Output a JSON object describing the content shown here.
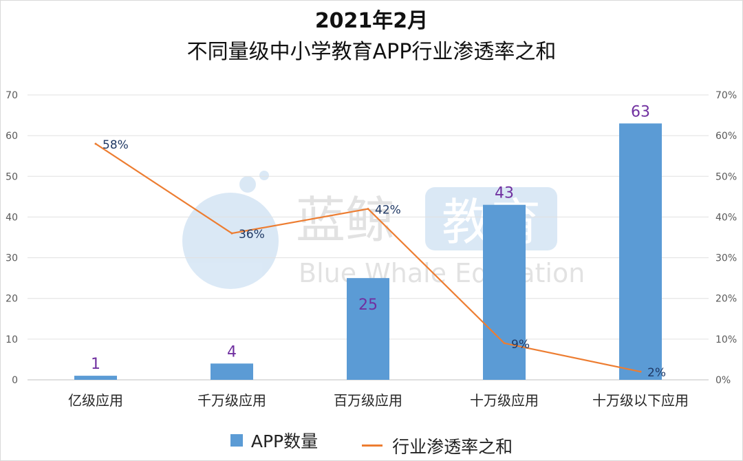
{
  "title": {
    "line1": "2021年2月",
    "line2": "不同量级中小学教育APP行业渗透率之和"
  },
  "watermark": {
    "cn_text": "蓝鲸",
    "cn_badge": "教育",
    "en_text": "Blue Whale Education"
  },
  "colors": {
    "bar": "#5b9bd5",
    "line": "#ed7d31",
    "bar_label": "#7030a0",
    "line_label": "#1f3864",
    "grid": "#e0e0e0",
    "axis_text": "#595959"
  },
  "chart_data": {
    "type": "bar",
    "categories": [
      "亿级应用",
      "千万级应用",
      "百万级应用",
      "十万级应用",
      "十万级以下应用"
    ],
    "series": [
      {
        "name": "APP数量",
        "type": "bar",
        "axis": "left",
        "values": [
          1,
          4,
          25,
          43,
          63
        ],
        "labels": [
          "1",
          "4",
          "25",
          "43",
          "63"
        ]
      },
      {
        "name": "行业渗透率之和",
        "type": "line",
        "axis": "right",
        "values": [
          58,
          36,
          42,
          9,
          2
        ],
        "labels": [
          "58%",
          "36%",
          "42%",
          "9%",
          "2%"
        ]
      }
    ],
    "y_left": {
      "ylim": [
        0,
        70
      ],
      "ticks": [
        "0",
        "10",
        "20",
        "30",
        "40",
        "50",
        "60",
        "70"
      ]
    },
    "y_right": {
      "ylim": [
        0,
        70
      ],
      "ticks": [
        "0%",
        "10%",
        "20%",
        "30%",
        "40%",
        "50%",
        "60%",
        "70%"
      ]
    },
    "grid": true,
    "legend_position": "bottom"
  },
  "legend": {
    "bar_label": "APP数量",
    "line_label": "行业渗透率之和"
  }
}
